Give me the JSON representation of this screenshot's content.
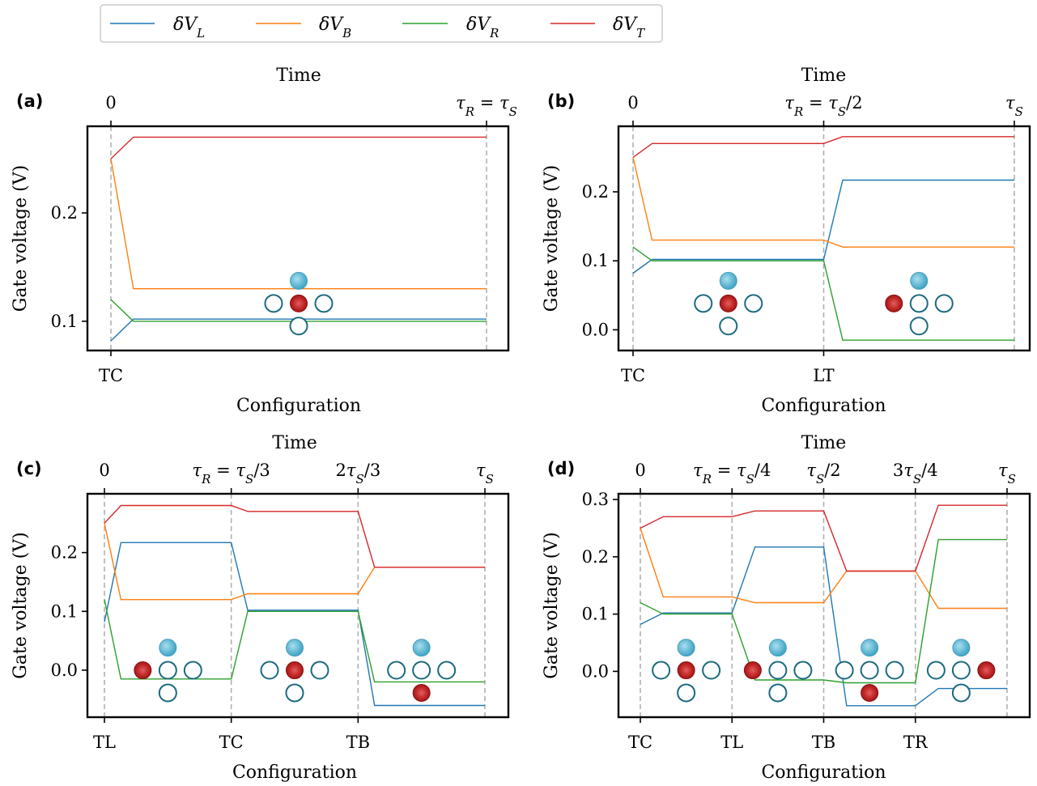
{
  "legend": [
    {
      "label": "δV_L",
      "main": "δV",
      "sub": "L",
      "color": "#1f77b4"
    },
    {
      "label": "δV_B",
      "main": "δV",
      "sub": "B",
      "color": "#ff7f0e"
    },
    {
      "label": "δV_R",
      "main": "δV",
      "sub": "R",
      "color": "#2ca02c"
    },
    {
      "label": "δV_T",
      "main": "δV",
      "sub": "T",
      "color": "#d62728"
    }
  ],
  "colors": {
    "blue_dot": "#5bb8d4",
    "red_dot": "#b91f1f",
    "ring": "#1b6a80",
    "grid": "#b0b0b0"
  },
  "chart_data": [
    {
      "type": "line",
      "panel_label": "(a)",
      "ylabel": "Gate voltage (V)",
      "xlabel": "Configuration",
      "top_label": "Time",
      "ylim": [
        0.073,
        0.28
      ],
      "yticks": [
        0.1,
        0.2
      ],
      "ytick_labels": [
        "0.1",
        "0.2"
      ],
      "bottom_ticks": [
        "TC"
      ],
      "top_ticks": [
        "0",
        "τ_R = τ_S"
      ],
      "segments": 1,
      "series": [
        {
          "name": "δV_L",
          "values": [
            [
              0,
              0.082
            ],
            [
              0.06,
              0.102
            ],
            [
              1,
              0.102
            ]
          ]
        },
        {
          "name": "δV_B",
          "values": [
            [
              0,
              0.25
            ],
            [
              0.06,
              0.13
            ],
            [
              1,
              0.13
            ]
          ]
        },
        {
          "name": "δV_R",
          "values": [
            [
              0,
              0.12
            ],
            [
              0.06,
              0.1
            ],
            [
              1,
              0.1
            ]
          ]
        },
        {
          "name": "δV_T",
          "values": [
            [
              0,
              0.25
            ],
            [
              0.06,
              0.27
            ],
            [
              1,
              0.27
            ]
          ]
        }
      ],
      "configs": [
        {
          "pos": 0.5,
          "red": "center"
        }
      ]
    },
    {
      "type": "line",
      "panel_label": "(b)",
      "ylabel": "Gate voltage (V)",
      "xlabel": "Configuration",
      "top_label": "Time",
      "ylim": [
        -0.03,
        0.295
      ],
      "yticks": [
        0.0,
        0.1,
        0.2
      ],
      "ytick_labels": [
        "0.0",
        "0.1",
        "0.2"
      ],
      "bottom_ticks": [
        "TC",
        "LT"
      ],
      "top_ticks": [
        "0",
        "τ_R = τ_S/2",
        "τ_S"
      ],
      "segments": 2,
      "series": [
        {
          "name": "δV_L",
          "values": [
            [
              0,
              0.082
            ],
            [
              0.1,
              0.102
            ],
            [
              1,
              0.102
            ],
            [
              1.1,
              0.217
            ],
            [
              2,
              0.217
            ]
          ]
        },
        {
          "name": "δV_B",
          "values": [
            [
              0,
              0.25
            ],
            [
              0.1,
              0.13
            ],
            [
              1,
              0.13
            ],
            [
              1.1,
              0.12
            ],
            [
              2,
              0.12
            ]
          ]
        },
        {
          "name": "δV_R",
          "values": [
            [
              0,
              0.12
            ],
            [
              0.1,
              0.1
            ],
            [
              1,
              0.1
            ],
            [
              1.1,
              -0.015
            ],
            [
              2,
              -0.015
            ]
          ]
        },
        {
          "name": "δV_T",
          "values": [
            [
              0,
              0.25
            ],
            [
              0.1,
              0.27
            ],
            [
              1,
              0.27
            ],
            [
              1.1,
              0.28
            ],
            [
              2,
              0.28
            ]
          ]
        }
      ],
      "configs": [
        {
          "pos": 0.5,
          "red": "center"
        },
        {
          "pos": 1.5,
          "red": "left"
        }
      ]
    },
    {
      "type": "line",
      "panel_label": "(c)",
      "ylabel": "Gate voltage (V)",
      "xlabel": "Configuration",
      "top_label": "Time",
      "ylim": [
        -0.08,
        0.3
      ],
      "yticks": [
        0.0,
        0.1,
        0.2
      ],
      "ytick_labels": [
        "0.0",
        "0.1",
        "0.2"
      ],
      "bottom_ticks": [
        "TL",
        "TC",
        "TB"
      ],
      "top_ticks": [
        "0",
        "τ_R = τ_S/3",
        "2τ_S/3",
        "τ_S"
      ],
      "segments": 3,
      "series": [
        {
          "name": "δV_L",
          "values": [
            [
              0,
              0.082
            ],
            [
              0.13,
              0.217
            ],
            [
              1,
              0.217
            ],
            [
              1.13,
              0.102
            ],
            [
              2,
              0.102
            ],
            [
              2.13,
              -0.06
            ],
            [
              3,
              -0.06
            ]
          ]
        },
        {
          "name": "δV_B",
          "values": [
            [
              0,
              0.25
            ],
            [
              0.13,
              0.12
            ],
            [
              1,
              0.12
            ],
            [
              1.13,
              0.13
            ],
            [
              2,
              0.13
            ],
            [
              2.13,
              0.175
            ],
            [
              3,
              0.175
            ]
          ]
        },
        {
          "name": "δV_R",
          "values": [
            [
              0,
              0.12
            ],
            [
              0.13,
              -0.015
            ],
            [
              1,
              -0.015
            ],
            [
              1.13,
              0.1
            ],
            [
              2,
              0.1
            ],
            [
              2.13,
              -0.02
            ],
            [
              3,
              -0.02
            ]
          ]
        },
        {
          "name": "δV_T",
          "values": [
            [
              0,
              0.25
            ],
            [
              0.13,
              0.28
            ],
            [
              1,
              0.28
            ],
            [
              1.13,
              0.27
            ],
            [
              2,
              0.27
            ],
            [
              2.13,
              0.175
            ],
            [
              3,
              0.175
            ]
          ]
        }
      ],
      "configs": [
        {
          "pos": 0.5,
          "red": "left"
        },
        {
          "pos": 1.5,
          "red": "center"
        },
        {
          "pos": 2.5,
          "red": "bottom"
        }
      ]
    },
    {
      "type": "line",
      "panel_label": "(d)",
      "ylabel": "Gate voltage (V)",
      "xlabel": "Configuration",
      "top_label": "Time",
      "ylim": [
        -0.08,
        0.31
      ],
      "yticks": [
        0.0,
        0.1,
        0.2,
        0.3
      ],
      "ytick_labels": [
        "0.0",
        "0.1",
        "0.2",
        "0.3"
      ],
      "bottom_ticks": [
        "TC",
        "TL",
        "TB",
        "TR"
      ],
      "top_ticks": [
        "0",
        "τ_R = τ_S/4",
        "τ_S/2",
        "3τ_S/4",
        "τ_S"
      ],
      "segments": 4,
      "series": [
        {
          "name": "δV_L",
          "values": [
            [
              0,
              0.082
            ],
            [
              0.25,
              0.102
            ],
            [
              1,
              0.102
            ],
            [
              1.25,
              0.217
            ],
            [
              2,
              0.217
            ],
            [
              2.25,
              -0.06
            ],
            [
              3,
              -0.06
            ],
            [
              3.25,
              -0.03
            ],
            [
              4,
              -0.03
            ]
          ]
        },
        {
          "name": "δV_B",
          "values": [
            [
              0,
              0.25
            ],
            [
              0.25,
              0.13
            ],
            [
              1,
              0.13
            ],
            [
              1.25,
              0.12
            ],
            [
              2,
              0.12
            ],
            [
              2.25,
              0.175
            ],
            [
              3,
              0.175
            ],
            [
              3.25,
              0.11
            ],
            [
              4,
              0.11
            ]
          ]
        },
        {
          "name": "δV_R",
          "values": [
            [
              0,
              0.12
            ],
            [
              0.25,
              0.1
            ],
            [
              1,
              0.1
            ],
            [
              1.25,
              -0.015
            ],
            [
              2,
              -0.015
            ],
            [
              2.25,
              -0.02
            ],
            [
              3,
              -0.02
            ],
            [
              3.25,
              0.23
            ],
            [
              4,
              0.23
            ]
          ]
        },
        {
          "name": "δV_T",
          "values": [
            [
              0,
              0.25
            ],
            [
              0.25,
              0.27
            ],
            [
              1,
              0.27
            ],
            [
              1.25,
              0.28
            ],
            [
              2,
              0.28
            ],
            [
              2.25,
              0.175
            ],
            [
              3,
              0.175
            ],
            [
              3.25,
              0.29
            ],
            [
              4,
              0.29
            ]
          ]
        }
      ],
      "configs": [
        {
          "pos": 0.5,
          "red": "center"
        },
        {
          "pos": 1.5,
          "red": "left"
        },
        {
          "pos": 2.5,
          "red": "bottom"
        },
        {
          "pos": 3.5,
          "red": "right"
        }
      ]
    }
  ]
}
